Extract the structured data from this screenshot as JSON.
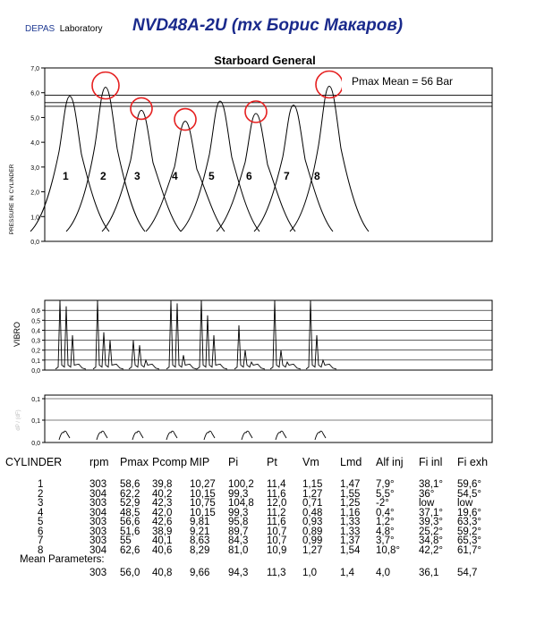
{
  "header": {
    "lab_brand": "DEPAS",
    "lab_text": "Laboratory",
    "title": "NVD48A-2U  (mx Борис Макаров)"
  },
  "chart_data": [
    {
      "type": "line",
      "title": "Starboard General",
      "ylabel": "PRESSURE IN CYLINDER",
      "ylim": [
        0,
        7
      ],
      "yticks": [
        "0,0",
        "1,0",
        "2,0",
        "3,0",
        "4,0",
        "5,0",
        "6,0",
        "7,0"
      ],
      "annotation": "Pmax Mean = 56 Bar",
      "reference_lines": [
        5.45,
        5.6,
        5.9
      ],
      "highlighted_cylinders": [
        "2",
        "3",
        "4",
        "6",
        "8"
      ],
      "series": [
        {
          "name": "1",
          "peak": 5.86
        },
        {
          "name": "2",
          "peak": 6.22
        },
        {
          "name": "3",
          "peak": 5.29
        },
        {
          "name": "4",
          "peak": 4.85
        },
        {
          "name": "5",
          "peak": 5.66
        },
        {
          "name": "6",
          "peak": 5.16
        },
        {
          "name": "7",
          "peak": 5.5
        },
        {
          "name": "8",
          "peak": 6.26
        }
      ]
    },
    {
      "type": "line",
      "ylabel": "VIBRO",
      "ylim": [
        0,
        0.7
      ],
      "yticks": [
        "0,0",
        "0,1",
        "0,2",
        "0,3",
        "0,4",
        "0,5",
        "0,6"
      ]
    },
    {
      "type": "line",
      "ylabel": "dP / (dF)",
      "ylim": [
        0,
        0.1
      ],
      "yticks": [
        "0,0",
        "0,1",
        "0,1"
      ]
    }
  ],
  "table": {
    "headers": [
      "CYLINDER",
      "rpm",
      "Pmax",
      "Pcomp",
      "MIP",
      "Pi",
      "Pt",
      "Vm",
      "Lmd",
      "Alf inj",
      "Fi inl",
      "Fi exh"
    ],
    "rows": [
      [
        "1",
        "303",
        "58,6",
        "39,8",
        "10,27",
        "100,2",
        "11,4",
        "1,15",
        "1,47",
        "7,9°",
        "38,1°",
        "59,6°"
      ],
      [
        "2",
        "304",
        "62,2",
        "40,2",
        "10,15",
        "99,3",
        "11,6",
        "1,27",
        "1,55",
        "5,5°",
        "36°",
        "54,5°"
      ],
      [
        "3",
        "303",
        "52,9",
        "42,3",
        "10,75",
        "104,8",
        "12,0",
        "0,71",
        "1,25",
        "-2°",
        "low",
        "low"
      ],
      [
        "4",
        "304",
        "48,5",
        "42,0",
        "10,15",
        "99,3",
        "11,2",
        "0,48",
        "1,16",
        "0,4°",
        "37,1°",
        "19,6°"
      ],
      [
        "5",
        "303",
        "56,6",
        "42,6",
        "9,81",
        "95,8",
        "11,6",
        "0,93",
        "1,33",
        "1,2°",
        "39,3°",
        "63,3°"
      ],
      [
        "6",
        "303",
        "51,6",
        "38,9",
        "9,21",
        "89,7",
        "10,7",
        "0,89",
        "1,33",
        "4,8°",
        "25,2°",
        "59,2°"
      ],
      [
        "7",
        "303",
        "55",
        "40,1",
        "8,63",
        "84,3",
        "10,7",
        "0,99",
        "1,37",
        "3,7°",
        "34,8°",
        "65,3°"
      ],
      [
        "8",
        "304",
        "62,6",
        "40,6",
        "8,29",
        "81,0",
        "10,9",
        "1,27",
        "1,54",
        "10,8°",
        "42,2°",
        "61,7°"
      ]
    ],
    "mean_label": "Mean Parameters:",
    "mean_row": [
      "303",
      "56,0",
      "40,8",
      "9,66",
      "94,3",
      "11,3",
      "1,0",
      "1,4",
      "4,0",
      "36,1",
      "54,7"
    ]
  }
}
